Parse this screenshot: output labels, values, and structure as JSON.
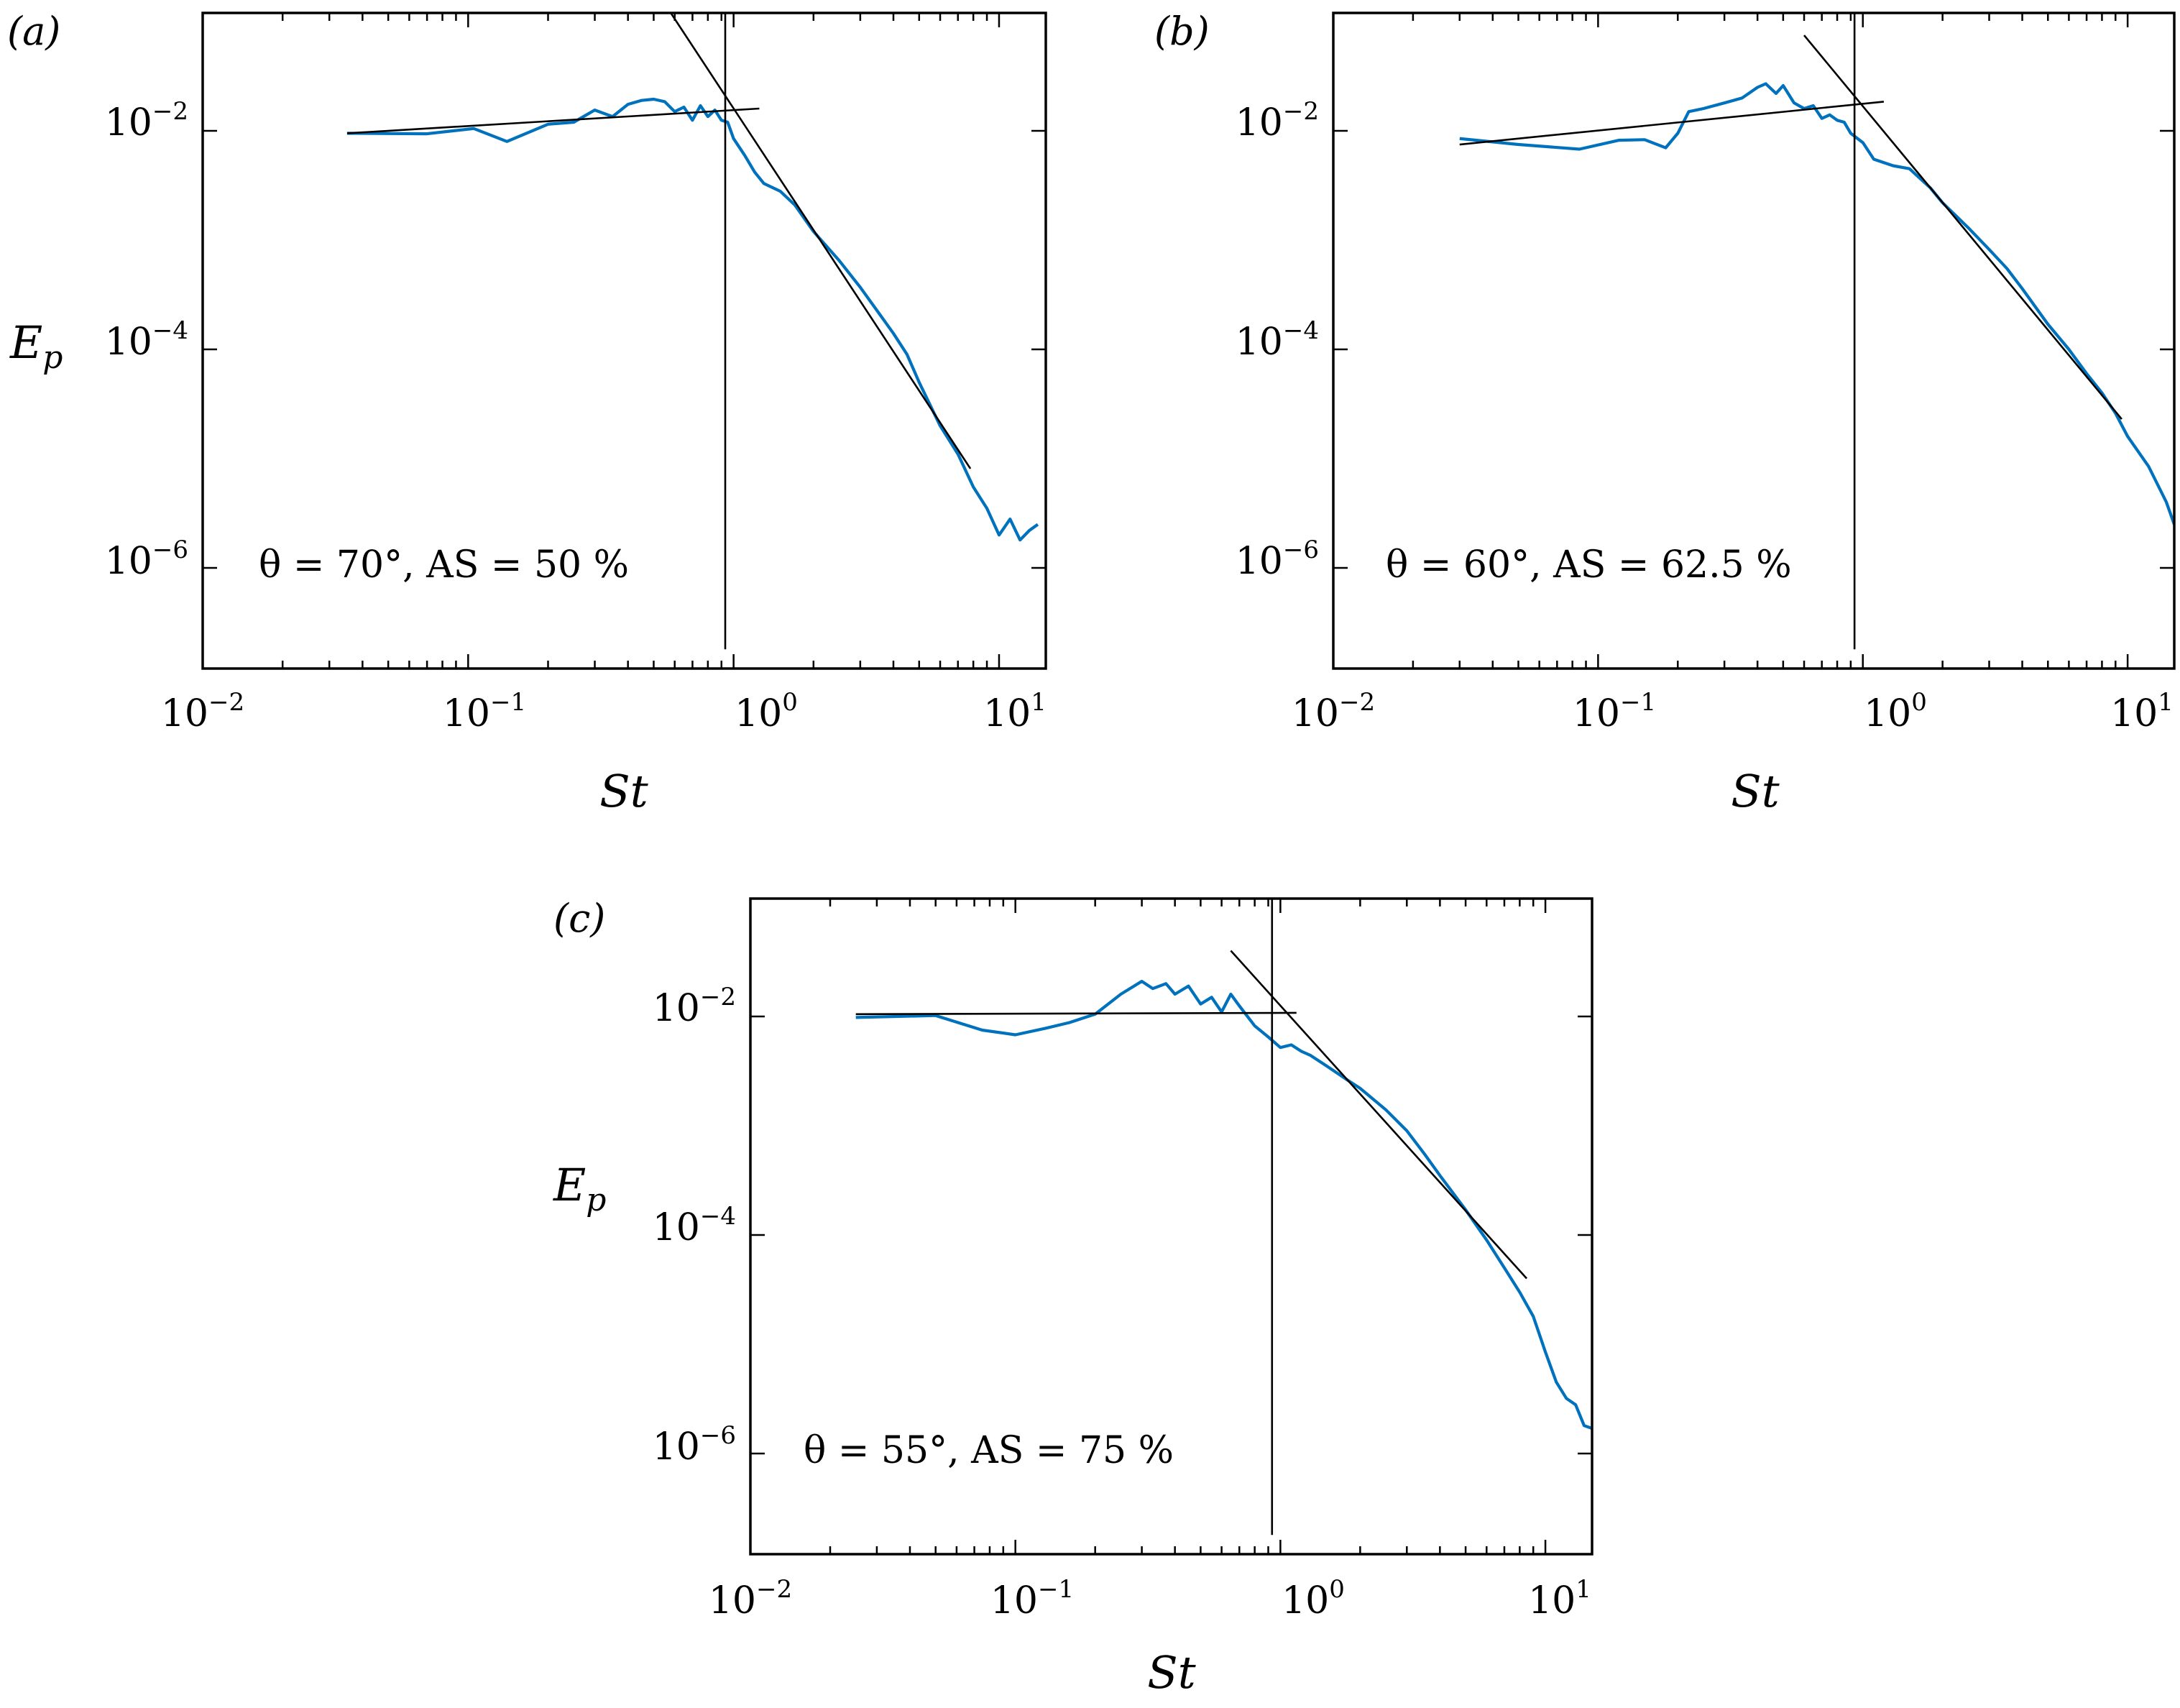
{
  "chart_data": [
    {
      "type": "line",
      "panel_label": "(a)",
      "xlabel": "St",
      "ylabel_main": "E",
      "ylabel_sub": "p",
      "xscale": "log",
      "yscale": "log",
      "xlim": [
        0.01,
        15
      ],
      "ylim": [
        1.2e-07,
        0.12
      ],
      "xticks": [
        {
          "base": "10",
          "exp": "−2"
        },
        {
          "base": "10",
          "exp": "−1"
        },
        {
          "base": "10",
          "exp": "0"
        },
        {
          "base": "10",
          "exp": "1"
        }
      ],
      "yticks": [
        {
          "base": "10",
          "exp": "−6"
        },
        {
          "base": "10",
          "exp": "−4"
        },
        {
          "base": "10",
          "exp": "−2"
        }
      ],
      "annotation": "θ = 70°, AS = 50 %",
      "legend": "none",
      "series": [
        {
          "name": "E_p spectrum",
          "color": "#0072bd",
          "x": [
            0.035,
            0.07,
            0.105,
            0.14,
            0.2,
            0.25,
            0.3,
            0.35,
            0.4,
            0.45,
            0.5,
            0.55,
            0.6,
            0.65,
            0.7,
            0.75,
            0.8,
            0.85,
            0.9,
            0.95,
            1.0,
            1.1,
            1.2,
            1.3,
            1.5,
            1.7,
            2.0,
            2.5,
            3.0,
            3.5,
            4.0,
            4.5,
            5.0,
            6.0,
            7.0,
            8.0,
            9.0,
            10.0,
            11.0,
            12.0,
            13.0,
            14.0
          ],
          "y": [
            0.0095,
            0.0094,
            0.0105,
            0.008,
            0.0115,
            0.012,
            0.0155,
            0.0135,
            0.0175,
            0.019,
            0.0195,
            0.0185,
            0.015,
            0.0165,
            0.0125,
            0.017,
            0.0135,
            0.0155,
            0.0125,
            0.012,
            0.0085,
            0.006,
            0.0042,
            0.0033,
            0.0028,
            0.0021,
            0.0012,
            0.00065,
            0.00037,
            0.00022,
            0.00014,
            9e-05,
            5e-05,
            2e-05,
            1.1e-05,
            5.5e-06,
            3.5e-06,
            2e-06,
            2.8e-06,
            1.8e-06,
            2.2e-06,
            2.5e-06
          ]
        }
      ],
      "fit_lines": [
        {
          "from": [
            0.035,
            0.0095
          ],
          "to": [
            1.25,
            0.016
          ]
        },
        {
          "from": [
            0.58,
            0.12
          ],
          "to": [
            7.8,
            8.1e-06
          ]
        },
        {
          "from": [
            0.93,
            1.8e-07
          ],
          "to": [
            0.93,
            0.12
          ]
        }
      ]
    },
    {
      "type": "line",
      "panel_label": "(b)",
      "xlabel": "St",
      "ylabel_main": "",
      "ylabel_sub": "",
      "xscale": "log",
      "yscale": "log",
      "xlim": [
        0.01,
        15
      ],
      "ylim": [
        1.2e-07,
        0.12
      ],
      "xticks": [
        {
          "base": "10",
          "exp": "−2"
        },
        {
          "base": "10",
          "exp": "−1"
        },
        {
          "base": "10",
          "exp": "0"
        },
        {
          "base": "10",
          "exp": "1"
        }
      ],
      "yticks": [
        {
          "base": "10",
          "exp": "−6"
        },
        {
          "base": "10",
          "exp": "−4"
        },
        {
          "base": "10",
          "exp": "−2"
        }
      ],
      "annotation": "θ = 60°, AS = 62.5 %",
      "legend": "none",
      "series": [
        {
          "name": "E_p spectrum",
          "color": "#0072bd",
          "x": [
            0.03,
            0.05,
            0.085,
            0.12,
            0.15,
            0.18,
            0.2,
            0.22,
            0.25,
            0.3,
            0.35,
            0.4,
            0.43,
            0.47,
            0.5,
            0.55,
            0.6,
            0.65,
            0.7,
            0.75,
            0.8,
            0.85,
            0.9,
            1.0,
            1.1,
            1.3,
            1.5,
            1.8,
            2.0,
            2.5,
            3.0,
            3.5,
            4.0,
            5.0,
            6.0,
            7.0,
            8.0,
            9.0,
            10.0,
            12.0,
            14.0,
            15.0
          ],
          "y": [
            0.0085,
            0.0075,
            0.0068,
            0.0082,
            0.0083,
            0.007,
            0.0095,
            0.015,
            0.016,
            0.018,
            0.02,
            0.025,
            0.027,
            0.022,
            0.026,
            0.018,
            0.016,
            0.017,
            0.013,
            0.014,
            0.0125,
            0.012,
            0.0095,
            0.0078,
            0.0055,
            0.0048,
            0.0045,
            0.003,
            0.0022,
            0.0013,
            0.00082,
            0.00055,
            0.00036,
            0.00017,
            0.0001,
            6e-05,
            4e-05,
            2.6e-05,
            1.6e-05,
            8.5e-06,
            4e-06,
            2.5e-06
          ]
        }
      ],
      "fit_lines": [
        {
          "from": [
            0.03,
            0.0075
          ],
          "to": [
            1.2,
            0.0185
          ]
        },
        {
          "from": [
            0.6,
            0.075
          ],
          "to": [
            9.5,
            2.3e-05
          ]
        },
        {
          "from": [
            0.93,
            1.8e-07
          ],
          "to": [
            0.93,
            0.12
          ]
        }
      ]
    },
    {
      "type": "line",
      "panel_label": "(c)",
      "xlabel": "St",
      "ylabel_main": "E",
      "ylabel_sub": "p",
      "xscale": "log",
      "yscale": "log",
      "xlim": [
        0.01,
        15
      ],
      "ylim": [
        1.2e-07,
        0.12
      ],
      "xticks": [
        {
          "base": "10",
          "exp": "−2"
        },
        {
          "base": "10",
          "exp": "−1"
        },
        {
          "base": "10",
          "exp": "0"
        },
        {
          "base": "10",
          "exp": "1"
        }
      ],
      "yticks": [
        {
          "base": "10",
          "exp": "−6"
        },
        {
          "base": "10",
          "exp": "−4"
        },
        {
          "base": "10",
          "exp": "−2"
        }
      ],
      "annotation": "θ = 55°, AS = 75 %",
      "legend": "none",
      "series": [
        {
          "name": "E_p spectrum",
          "color": "#0072bd",
          "x": [
            0.025,
            0.05,
            0.075,
            0.1,
            0.13,
            0.16,
            0.2,
            0.25,
            0.3,
            0.33,
            0.37,
            0.4,
            0.45,
            0.5,
            0.55,
            0.6,
            0.65,
            0.7,
            0.8,
            0.9,
            1.0,
            1.1,
            1.2,
            1.3,
            1.5,
            1.8,
            2.0,
            2.5,
            3.0,
            3.5,
            4.0,
            5.0,
            6.0,
            7.0,
            8.0,
            9.0,
            10.0,
            11.0,
            12.0,
            13.0,
            14.0,
            15.0
          ],
          "y": [
            0.0098,
            0.0102,
            0.0075,
            0.0068,
            0.0078,
            0.0088,
            0.0105,
            0.016,
            0.021,
            0.018,
            0.02,
            0.016,
            0.019,
            0.013,
            0.015,
            0.011,
            0.016,
            0.0125,
            0.0082,
            0.0065,
            0.0052,
            0.0055,
            0.0048,
            0.0044,
            0.0035,
            0.0026,
            0.0022,
            0.0014,
            0.0009,
            0.00055,
            0.00035,
            0.00017,
            9e-05,
            5e-05,
            3e-05,
            1.8e-05,
            8.5e-06,
            4.5e-06,
            3.2e-06,
            2.8e-06,
            1.8e-06,
            1.7e-06
          ]
        }
      ],
      "fit_lines": [
        {
          "from": [
            0.025,
            0.0105
          ],
          "to": [
            1.15,
            0.0108
          ]
        },
        {
          "from": [
            0.65,
            0.04
          ],
          "to": [
            8.5,
            4e-05
          ]
        },
        {
          "from": [
            0.93,
            1.8e-07
          ],
          "to": [
            0.93,
            0.12
          ]
        }
      ]
    }
  ]
}
